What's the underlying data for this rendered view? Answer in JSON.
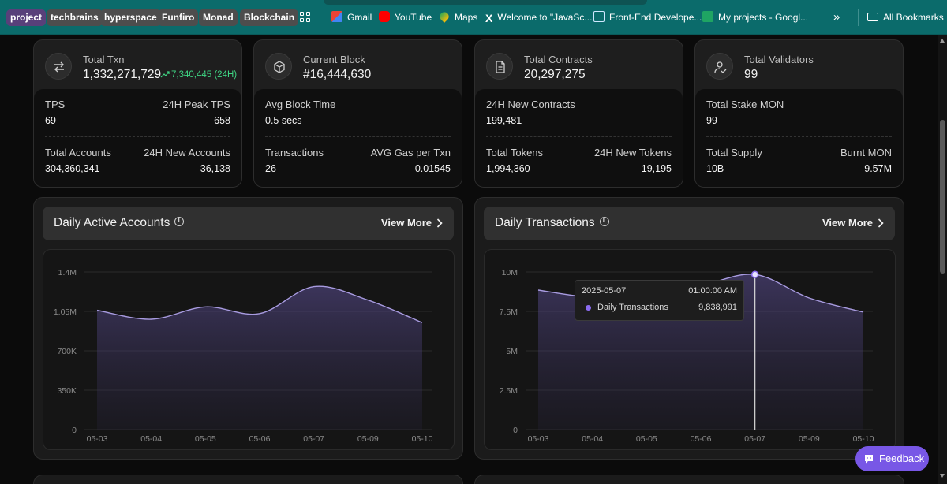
{
  "bookmarks": {
    "items": [
      {
        "label": "project"
      },
      {
        "label": "techbrains"
      },
      {
        "label": "hyperspace"
      },
      {
        "label": "Funfiro"
      },
      {
        "label": "Monad"
      },
      {
        "label": "Blockchain"
      },
      {
        "label": "Gmail"
      },
      {
        "label": "YouTube"
      },
      {
        "label": "Maps"
      },
      {
        "label": "Welcome to \"JavaSc..."
      },
      {
        "label": "Front-End Develope..."
      },
      {
        "label": "My projects - Googl..."
      }
    ],
    "more": "»",
    "all_bookmarks": "All Bookmarks"
  },
  "stats": [
    {
      "title": "Total Txn",
      "value": "1,332,271,729",
      "delta": "7,340,445 (24H)",
      "icon": "arrows-swap-icon",
      "rows": [
        {
          "l_label": "TPS",
          "r_label": "24H Peak TPS",
          "l_val": "69",
          "r_val": "658"
        },
        {
          "l_label": "Total Accounts",
          "r_label": "24H New Accounts",
          "l_val": "304,360,341",
          "r_val": "36,138"
        }
      ]
    },
    {
      "title": "Current Block",
      "value": "#16,444,630",
      "delta": "",
      "icon": "cube-icon",
      "rows": [
        {
          "l_label": "Avg Block Time",
          "r_label": "",
          "l_val": "0.5 secs",
          "r_val": ""
        },
        {
          "l_label": "Transactions",
          "r_label": "AVG Gas per Txn",
          "l_val": "26",
          "r_val": "0.01545"
        }
      ]
    },
    {
      "title": "Total Contracts",
      "value": "20,297,275",
      "delta": "",
      "icon": "document-icon",
      "rows": [
        {
          "l_label": "24H New Contracts",
          "r_label": "",
          "l_val": "199,481",
          "r_val": ""
        },
        {
          "l_label": "Total Tokens",
          "r_label": "24H New Tokens",
          "l_val": "1,994,360",
          "r_val": "19,195"
        }
      ]
    },
    {
      "title": "Total Validators",
      "value": "99",
      "delta": "",
      "icon": "user-check-icon",
      "rows": [
        {
          "l_label": "Total Stake MON",
          "r_label": "",
          "l_val": "99",
          "r_val": ""
        },
        {
          "l_label": "Total Supply",
          "r_label": "Burnt MON",
          "l_val": "10B",
          "r_val": "9.57M"
        }
      ]
    }
  ],
  "panels": [
    {
      "title": "Daily Active Accounts",
      "view_more": "View More"
    },
    {
      "title": "Daily Transactions",
      "view_more": "View More"
    }
  ],
  "tooltip": {
    "date": "2025-05-07",
    "time": "01:00:00 AM",
    "series": "Daily Transactions",
    "value": "9,838,991"
  },
  "feedback": "Feedback",
  "colors": {
    "accent": "#7857e6",
    "line": "#a89be0",
    "positive": "#3fd483"
  },
  "chart_data": [
    {
      "type": "area",
      "title": "Daily Active Accounts",
      "categories": [
        "05-03",
        "05-04",
        "05-05",
        "05-06",
        "05-07",
        "05-09",
        "05-10"
      ],
      "y_ticks": [
        "0",
        "350K",
        "700K",
        "1.05M",
        "1.4M"
      ],
      "ylim": [
        0,
        1400000
      ],
      "values": [
        1060000,
        980000,
        1090000,
        1030000,
        1270000,
        1150000,
        950000
      ],
      "grid": true
    },
    {
      "type": "area",
      "title": "Daily Transactions",
      "categories": [
        "05-03",
        "05-04",
        "05-05",
        "05-06",
        "05-07",
        "05-09",
        "05-10"
      ],
      "y_ticks": [
        "0",
        "2.5M",
        "5M",
        "7.5M",
        "10M"
      ],
      "ylim": [
        0,
        10000000
      ],
      "values": [
        8850000,
        8400000,
        8700000,
        9150000,
        9838991,
        8350000,
        7450000
      ],
      "highlight_index": 4,
      "grid": true
    }
  ]
}
